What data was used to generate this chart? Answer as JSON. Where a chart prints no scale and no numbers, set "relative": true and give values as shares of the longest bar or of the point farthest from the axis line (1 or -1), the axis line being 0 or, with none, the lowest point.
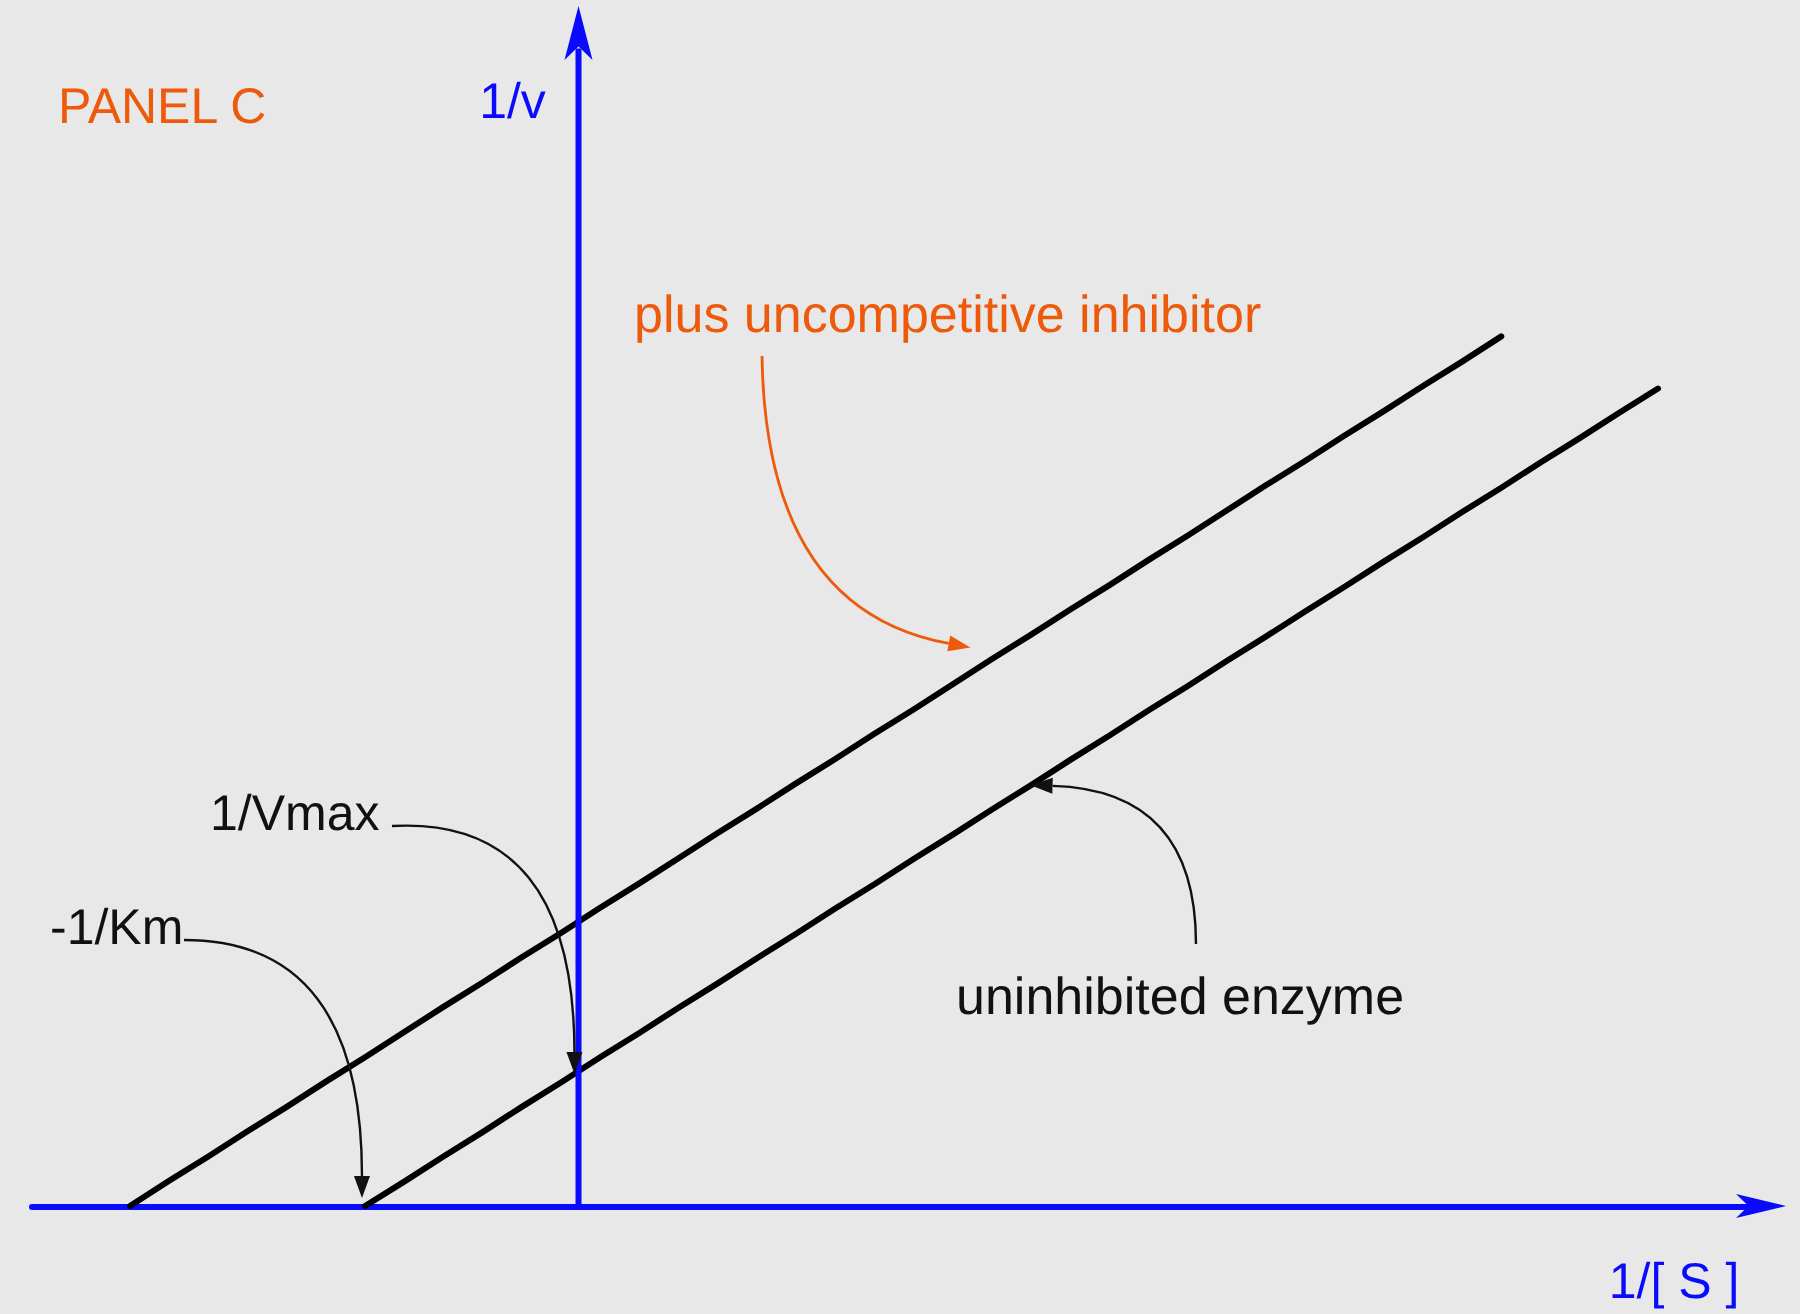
{
  "chart_data": {
    "type": "line",
    "title": "PANEL C",
    "xlabel": "1/[ S ]",
    "ylabel": "1/v",
    "relative": true,
    "categories": [
      null,
      null,
      null,
      null,
      null,
      null,
      null,
      null,
      null,
      null,
      null,
      null,
      null,
      null,
      null,
      null,
      null,
      null,
      null,
      null,
      null,
      null,
      null,
      null,
      null,
      null,
      null,
      null,
      null,
      null,
      null,
      null,
      null,
      null,
      null,
      null,
      null,
      null,
      null,
      null,
      null,
      null,
      null,
      null
    ],
    "series": [
      {
        "name": "plus uncompetitive inhibitor",
        "color": "#000000",
        "values": [
          null,
          null,
          0,
          0.029,
          0.057,
          0.086,
          0.114,
          0.143,
          0.171,
          0.2,
          0.229,
          0.257,
          0.286,
          0.314,
          0.343,
          0.371,
          0.4,
          0.429,
          0.457,
          0.486,
          0.514,
          0.543,
          0.571,
          0.6,
          0.629,
          0.657,
          0.686,
          0.714,
          0.743,
          0.771,
          0.8,
          0.829,
          0.857,
          0.886,
          0.914,
          0.943,
          0.971,
          1,
          null,
          null,
          null,
          null,
          null,
          null
        ]
      },
      {
        "name": "uninhibited enzyme",
        "color": "#000000",
        "values": [
          null,
          null,
          null,
          null,
          null,
          null,
          null,
          null,
          0,
          0.028,
          0.057,
          0.085,
          0.114,
          0.142,
          0.171,
          0.199,
          0.228,
          0.256,
          0.285,
          0.313,
          0.342,
          0.37,
          0.399,
          0.427,
          0.456,
          0.484,
          0.513,
          0.541,
          0.57,
          0.598,
          0.627,
          0.655,
          0.684,
          0.712,
          0.741,
          0.769,
          0.798,
          0.826,
          0.855,
          0.883,
          0.912,
          0.94,
          null,
          null
        ]
      }
    ],
    "annotations": [
      "1/Vmax",
      "-1/Km"
    ],
    "grid": false,
    "legend": false,
    "tick_labels": false,
    "marker": "none",
    "line_style": "solid"
  }
}
